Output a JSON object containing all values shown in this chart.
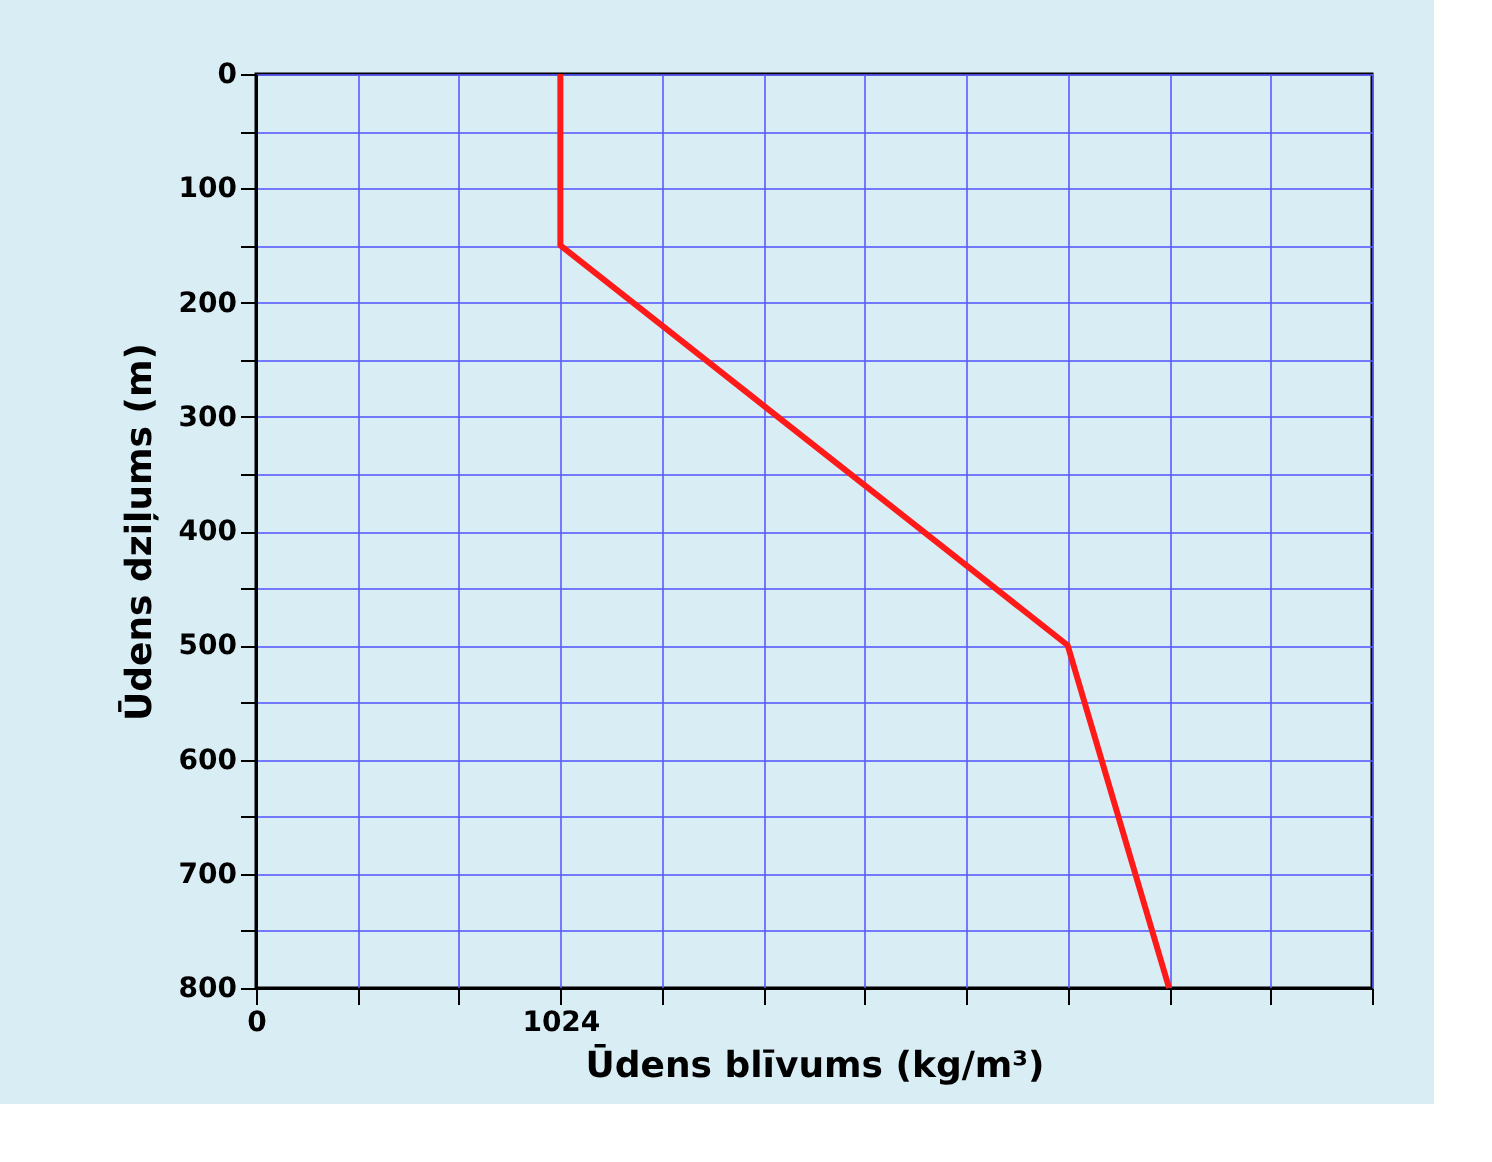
{
  "chart_data": {
    "type": "line",
    "xlabel": "Ūdens blīvums (kg/m³)",
    "ylabel": "Ūdens dziļums (m)",
    "series": [
      {
        "color": "#ff1a1a",
        "x": [
          1024,
          1024,
          2730.67,
          3072
        ],
        "values": [
          0,
          150,
          500,
          800
        ]
      }
    ],
    "xlim": [
      0,
      3754.67
    ],
    "xticks": [
      0,
      {
        "value": 341.33,
        "label": null
      },
      {
        "value": 682.67,
        "label": null
      },
      1024,
      {
        "value": 1365.33,
        "label": null
      },
      {
        "value": 1706.67,
        "label": null
      },
      {
        "value": 2048,
        "label": null
      },
      {
        "value": 2389.33,
        "label": null
      },
      {
        "value": 2730.67,
        "label": null
      },
      {
        "value": 3072,
        "label": null
      },
      {
        "value": 3413.33,
        "label": null
      },
      {
        "value": 3754.67,
        "label": null
      }
    ],
    "ylim": [
      800,
      0
    ],
    "yticks": [
      0,
      {
        "value": 50,
        "label": null
      },
      100,
      {
        "value": 150,
        "label": null
      },
      200,
      {
        "value": 250,
        "label": null
      },
      300,
      {
        "value": 350,
        "label": null
      },
      400,
      {
        "value": 450,
        "label": null
      },
      500,
      {
        "value": 550,
        "label": null
      },
      600,
      {
        "value": 650,
        "label": null
      },
      700,
      {
        "value": 750,
        "label": null
      },
      800
    ],
    "grid": true,
    "marker": "none",
    "line_style": "solid"
  }
}
